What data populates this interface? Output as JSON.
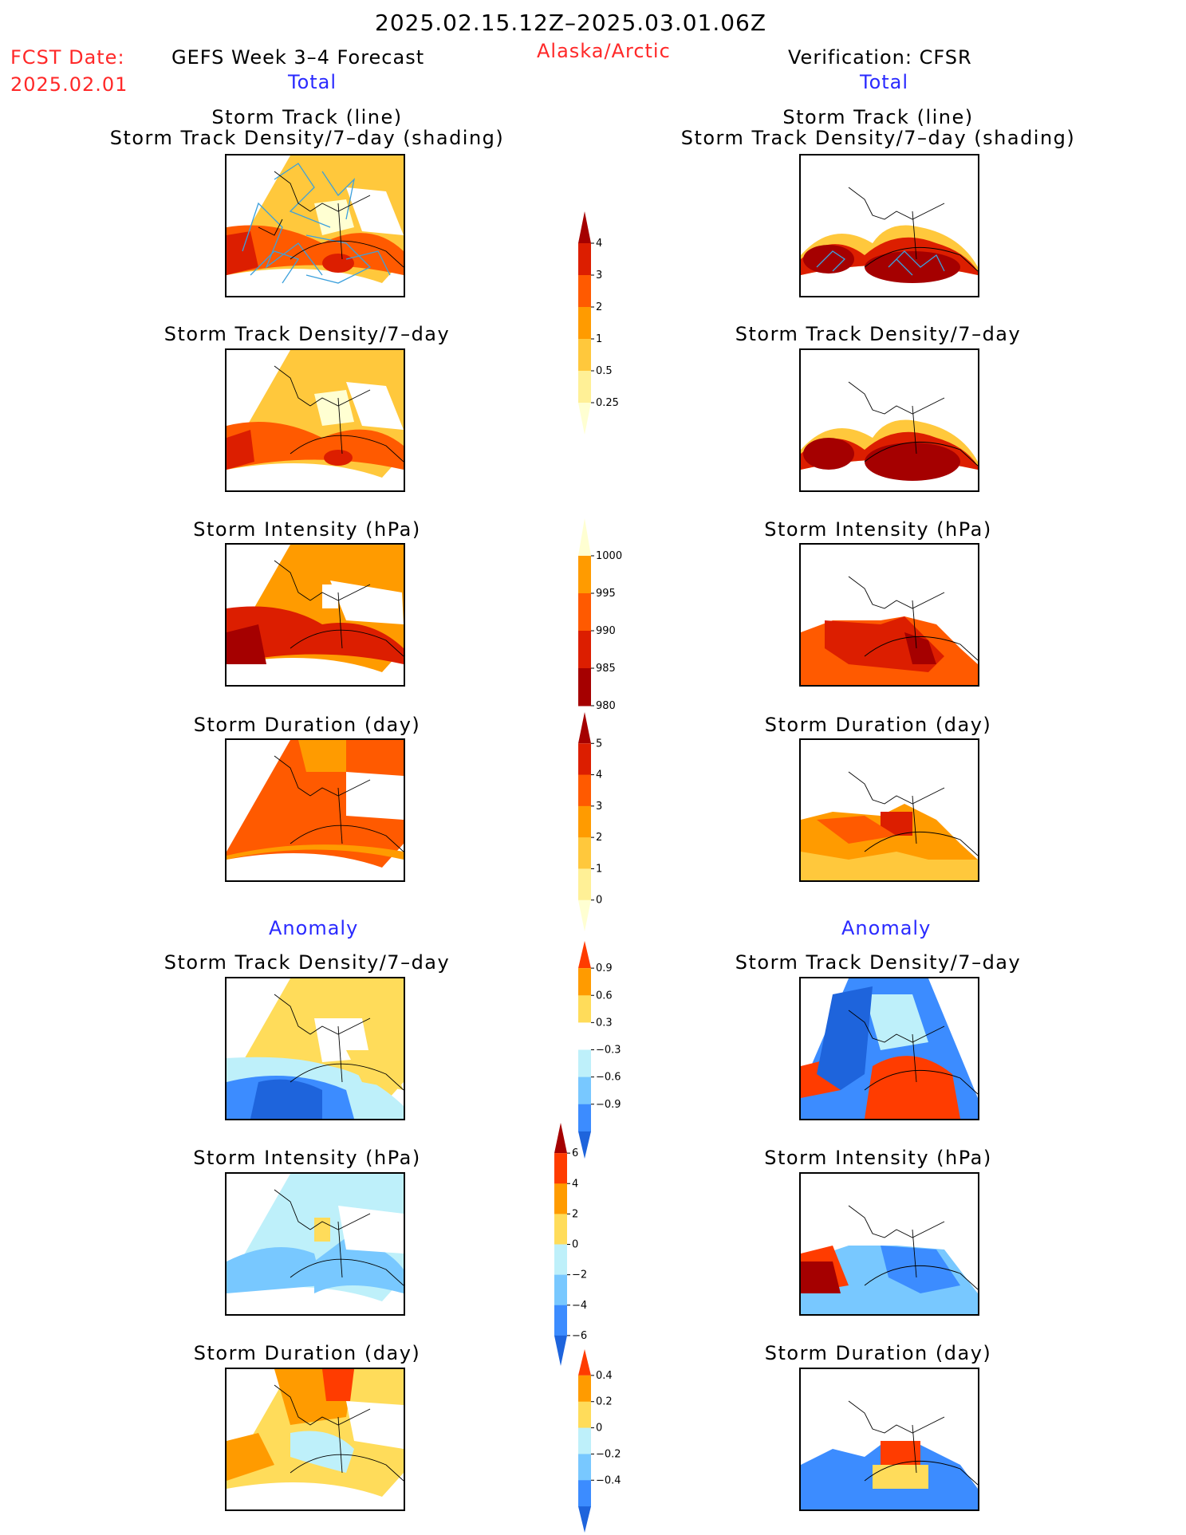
{
  "header": {
    "date_range": "2025.02.15.12Z–2025.03.01.06Z",
    "fcst_date_label": "FCST Date:",
    "fcst_date_value": "2025.02.01",
    "forecast_title": "GEFS Week 3–4 Forecast",
    "region": "Alaska/Arctic",
    "verification": "Verification: CFSR"
  },
  "sections": {
    "total_left": "Total",
    "total_right": "Total",
    "anomaly_left": "Anomaly",
    "anomaly_right": "Anomaly"
  },
  "panel_titles": {
    "track_line": "Storm Track (line)",
    "track_shading": "Storm Track Density/7–day (shading)",
    "density": "Storm Track Density/7–day",
    "intensity": "Storm Intensity (hPa)",
    "duration": "Storm Duration (day)"
  },
  "colorbars": {
    "density": {
      "ticks": [
        "4",
        "3",
        "2",
        "1",
        "0.5",
        "0.25"
      ],
      "colors": [
        "#a50000",
        "#dc1e00",
        "#ff5a00",
        "#ff9b00",
        "#ffc83c",
        "#fff096",
        "#ffffd2"
      ]
    },
    "intensity": {
      "ticks": [
        "1000",
        "995",
        "990",
        "985",
        "980"
      ],
      "colors": [
        "#ffffd2",
        "#ff9b00",
        "#ff5a00",
        "#dc1e00",
        "#a50000"
      ]
    },
    "duration": {
      "ticks": [
        "5",
        "4",
        "3",
        "2",
        "1",
        "0"
      ],
      "colors": [
        "#a50000",
        "#dc1e00",
        "#ff5a00",
        "#ff9b00",
        "#ffc83c",
        "#fff096",
        "#ffffd2"
      ]
    },
    "anom_density": {
      "ticks": [
        "0.9",
        "0.6",
        "0.3",
        "−0.3",
        "−0.6",
        "−0.9"
      ],
      "colors": [
        "#ff3c00",
        "#ff9b00",
        "#ffdc5a",
        "#ffffff",
        "#bef0fa",
        "#78c8ff",
        "#3c8cff",
        "#1e64dc"
      ]
    },
    "anom_intensity": {
      "ticks": [
        "6",
        "4",
        "2",
        "0",
        "−2",
        "−4",
        "−6"
      ],
      "colors": [
        "#a50000",
        "#ff3c00",
        "#ff9b00",
        "#ffdc5a",
        "#bef0fa",
        "#78c8ff",
        "#3c8cff",
        "#1e64dc"
      ]
    },
    "anom_duration": {
      "ticks": [
        "0.4",
        "0.2",
        "0",
        "−0.2",
        "−0.4"
      ],
      "colors": [
        "#ff3c00",
        "#ff9b00",
        "#ffdc5a",
        "#bef0fa",
        "#78c8ff",
        "#3c8cff",
        "#1e64dc"
      ]
    }
  }
}
